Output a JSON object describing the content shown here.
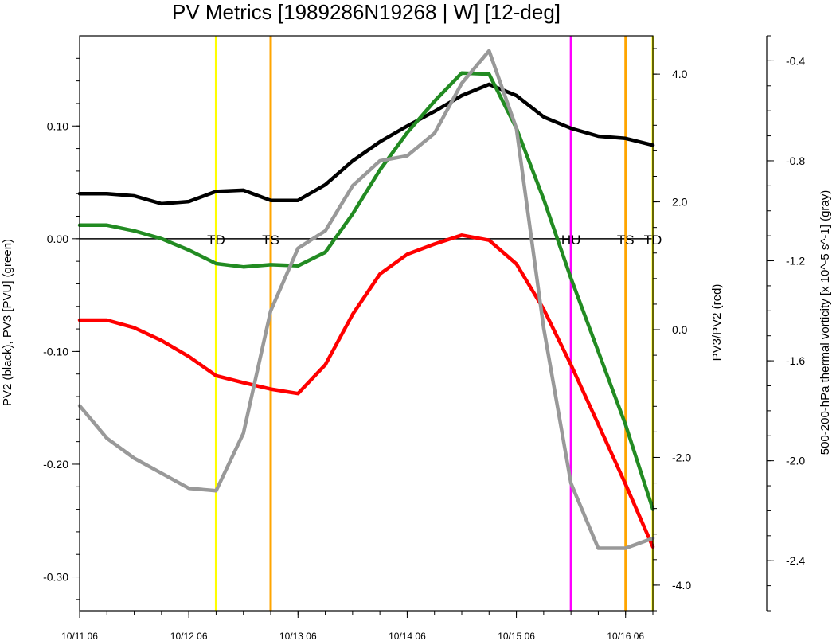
{
  "chart_data": {
    "type": "line",
    "title": "PV Metrics [1989286N19268 | W] [12-deg]",
    "xlabel": "",
    "ylabel_left": "PV2 (black), PV3 [PVU] (green)",
    "ylabel_right": "PV3/PV2 (red)",
    "ylabel_far_right": "500-200-hPa thermal vorticity [x 10^-5 s^-1] (gray)",
    "x_tick_labels": [
      "10/11 06",
      "10/12 06",
      "10/13 06",
      "10/14 06",
      "10/15 06",
      "10/16 06"
    ],
    "x_tick_values": [
      0,
      4,
      8,
      12,
      16,
      20
    ],
    "xlim": [
      0,
      21
    ],
    "left_axis": {
      "ylim": [
        -0.33,
        0.18
      ],
      "ticks": [
        0.1,
        0.0,
        -0.1,
        -0.2,
        -0.3
      ],
      "tick_labels": [
        "0.10",
        "0.00",
        "-0.10",
        "-0.20",
        "-0.30"
      ]
    },
    "right_axis": {
      "ylim": [
        -4.4,
        4.6
      ],
      "ticks": [
        4.0,
        2.0,
        0.0,
        -2.0,
        -4.0
      ],
      "tick_labels": [
        "4.0",
        "2.0",
        "0.0",
        "-2.0",
        "-4.0"
      ]
    },
    "far_right_axis": {
      "ylim": [
        -2.6,
        -0.3
      ],
      "ticks": [
        -0.4,
        -0.8,
        -1.2,
        -1.6,
        -2.0,
        -2.4
      ],
      "tick_labels": [
        "-0.4",
        "-0.8",
        "-1.2",
        "-1.6",
        "-2.0",
        "-2.4"
      ]
    },
    "series": [
      {
        "color": "#000000",
        "axis": "left",
        "values": [
          0.04,
          0.04,
          0.038,
          0.031,
          0.033,
          0.042,
          0.043,
          0.034,
          0.034,
          0.048,
          0.069,
          0.086,
          0.1,
          0.113,
          0.127,
          0.137,
          0.127,
          0.108,
          0.098,
          0.091,
          0.089,
          0.083
        ]
      },
      {
        "color": "#228B22",
        "axis": "left",
        "values": [
          0.012,
          0.012,
          0.007,
          0.0,
          -0.01,
          -0.022,
          -0.025,
          -0.023,
          -0.024,
          -0.012,
          0.022,
          0.061,
          0.094,
          0.122,
          0.147,
          0.146,
          0.098,
          0.035,
          -0.035,
          -0.1,
          -0.165,
          -0.24
        ]
      },
      {
        "color": "#FF0000",
        "axis": "right",
        "values": [
          0.15,
          0.15,
          0.03,
          -0.17,
          -0.42,
          -0.72,
          -0.83,
          -0.93,
          -1.0,
          -0.55,
          0.24,
          0.87,
          1.18,
          1.34,
          1.48,
          1.4,
          1.03,
          0.32,
          -0.55,
          -1.48,
          -2.42,
          -3.4
        ]
      },
      {
        "color": "#999999",
        "axis": "far_right",
        "values": [
          -1.78,
          -1.91,
          -1.99,
          -2.05,
          -2.11,
          -2.12,
          -1.89,
          -1.4,
          -1.15,
          -1.08,
          -0.9,
          -0.8,
          -0.78,
          -0.69,
          -0.49,
          -0.36,
          -0.67,
          -1.47,
          -2.09,
          -2.35,
          -2.35,
          -2.31
        ]
      }
    ],
    "zero_line_left": 0.0,
    "markers": [
      {
        "label": "TD",
        "x": 5,
        "color": "#FFFF00"
      },
      {
        "label": "TS",
        "x": 7,
        "color": "#FFA500"
      },
      {
        "label": "HU",
        "x": 18,
        "color": "#FF00FF"
      },
      {
        "label": "TS",
        "x": 20,
        "color": "#FFA500"
      },
      {
        "label": "TD",
        "x": 21,
        "color": "#FFFF00"
      }
    ]
  }
}
